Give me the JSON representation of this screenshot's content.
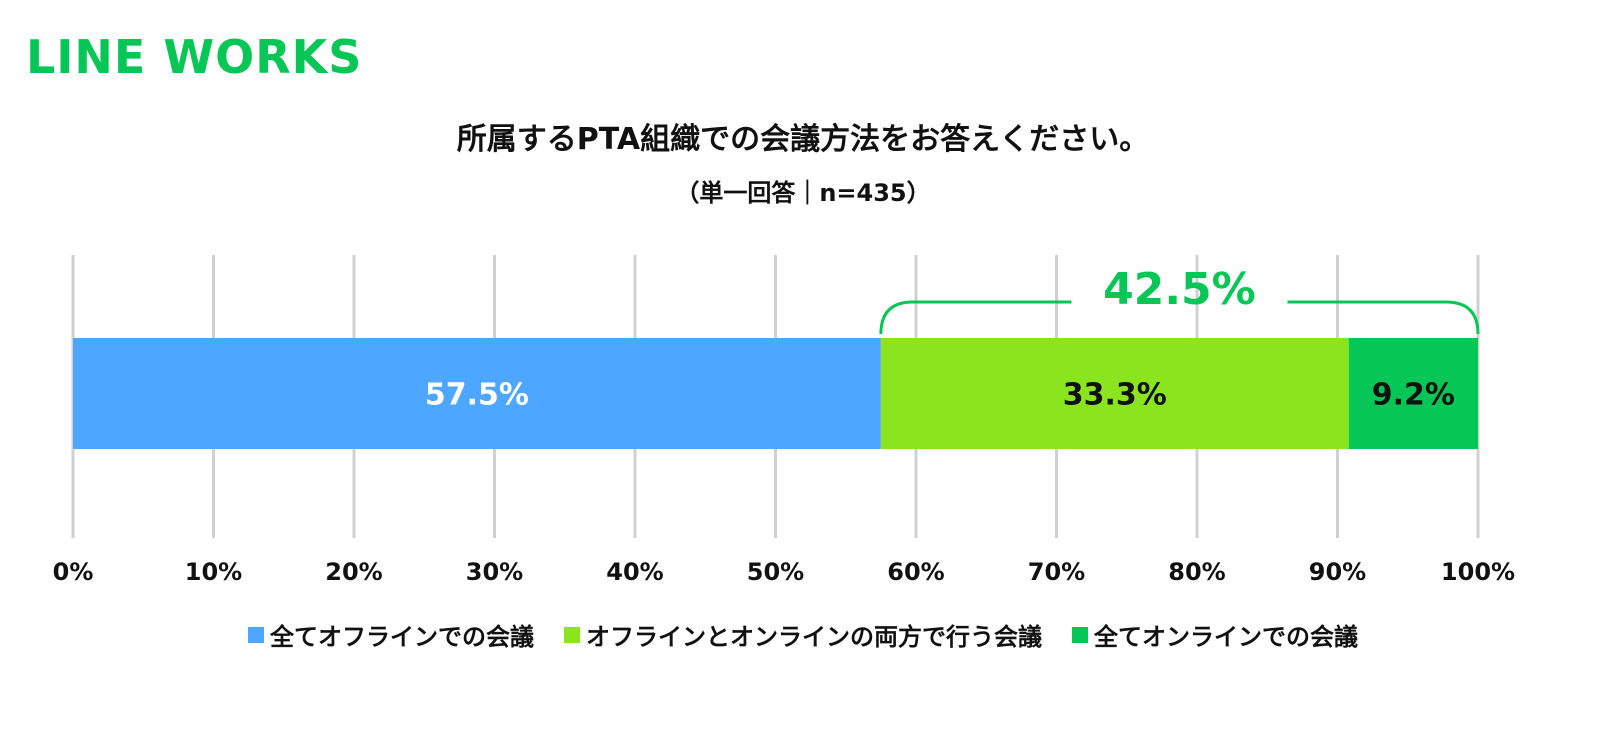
{
  "logo": {
    "text": "LINE WORKS",
    "color": "#06C755"
  },
  "chart_data": {
    "type": "bar",
    "orientation": "horizontal-stacked-100",
    "title": "所属するPTA組織での会議方法をお答えください。",
    "subtitle": "（単一回答｜n=435）",
    "xlim": [
      0,
      100
    ],
    "x_ticks": [
      "0%",
      "10%",
      "20%",
      "30%",
      "40%",
      "50%",
      "60%",
      "70%",
      "80%",
      "90%",
      "100%"
    ],
    "grid": true,
    "legend_position": "bottom",
    "series": [
      {
        "name": "全てオフラインでの会議",
        "value": 57.5,
        "label": "57.5%",
        "color": "#4DA6FF",
        "label_color": "#ffffff"
      },
      {
        "name": "オフラインとオンラインの両方で行う会議",
        "value": 33.3,
        "label": "33.3%",
        "color": "#8AE51E",
        "label_color": "#111111"
      },
      {
        "name": "全てオンラインでの会議",
        "value": 9.2,
        "label": "9.2%",
        "color": "#06C755",
        "label_color": "#111111"
      }
    ],
    "annotation": {
      "label": "42.5%",
      "spans_series": [
        1,
        2
      ],
      "color": "#06C755"
    }
  }
}
